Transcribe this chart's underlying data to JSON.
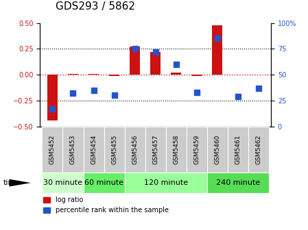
{
  "title": "GDS293 / 5862",
  "samples": [
    "GSM5452",
    "GSM5453",
    "GSM5454",
    "GSM5455",
    "GSM5456",
    "GSM5457",
    "GSM5458",
    "GSM5459",
    "GSM5460",
    "GSM5461",
    "GSM5462"
  ],
  "log_ratio": [
    -0.44,
    0.005,
    0.01,
    -0.01,
    0.27,
    0.22,
    0.02,
    -0.01,
    0.48,
    0.0,
    0.0
  ],
  "percentile": [
    17,
    32,
    35,
    30,
    75,
    72,
    60,
    33,
    85,
    29,
    37
  ],
  "groups": [
    {
      "label": "30 minute",
      "start": 0,
      "end": 1
    },
    {
      "label": "60 minute",
      "start": 2,
      "end": 3
    },
    {
      "label": "120 minute",
      "start": 4,
      "end": 7
    },
    {
      "label": "240 minute",
      "start": 8,
      "end": 10
    }
  ],
  "bar_color": "#cc1111",
  "dot_color": "#2255cc",
  "group_color_light": "#ccffcc",
  "group_color_dark": "#44dd44",
  "sample_box_color": "#cccccc",
  "ylim_left": [
    -0.5,
    0.5
  ],
  "ylim_right": [
    0,
    100
  ],
  "yticks_left": [
    -0.5,
    -0.25,
    0.0,
    0.25,
    0.5
  ],
  "yticks_right": [
    0,
    25,
    50,
    75,
    100
  ],
  "legend_log_ratio": "log ratio",
  "legend_percentile": "percentile rank within the sample",
  "bar_width": 0.5,
  "dot_size": 35,
  "title_fontsize": 11,
  "tick_fontsize": 7,
  "group_label_fontsize": 8,
  "sample_fontsize": 6.5
}
